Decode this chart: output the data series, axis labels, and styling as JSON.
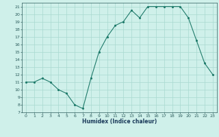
{
  "x": [
    0,
    1,
    2,
    3,
    4,
    5,
    6,
    7,
    8,
    9,
    10,
    11,
    12,
    13,
    14,
    15,
    16,
    17,
    18,
    19,
    20,
    21,
    22,
    23
  ],
  "y": [
    11,
    11,
    11.5,
    11,
    10,
    9.5,
    8,
    7.5,
    11.5,
    15,
    17,
    18.5,
    19,
    20.5,
    19.5,
    21,
    21,
    21,
    21,
    21,
    19.5,
    16.5,
    13.5,
    12
  ],
  "xlabel": "Humidex (Indice chaleur)",
  "xlim": [
    -0.5,
    23.5
  ],
  "ylim": [
    7,
    21.5
  ],
  "yticks": [
    7,
    8,
    9,
    10,
    11,
    12,
    13,
    14,
    15,
    16,
    17,
    18,
    19,
    20,
    21
  ],
  "xticks": [
    0,
    1,
    2,
    3,
    4,
    5,
    6,
    7,
    8,
    9,
    10,
    11,
    12,
    13,
    14,
    15,
    16,
    17,
    18,
    19,
    20,
    21,
    22,
    23
  ],
  "line_color": "#1e7a6a",
  "marker_color": "#1e7a6a",
  "bg_color": "#cff0ea",
  "grid_color": "#a8d8d0",
  "tick_color": "#2a5a5a",
  "label_color": "#1a3a5a"
}
